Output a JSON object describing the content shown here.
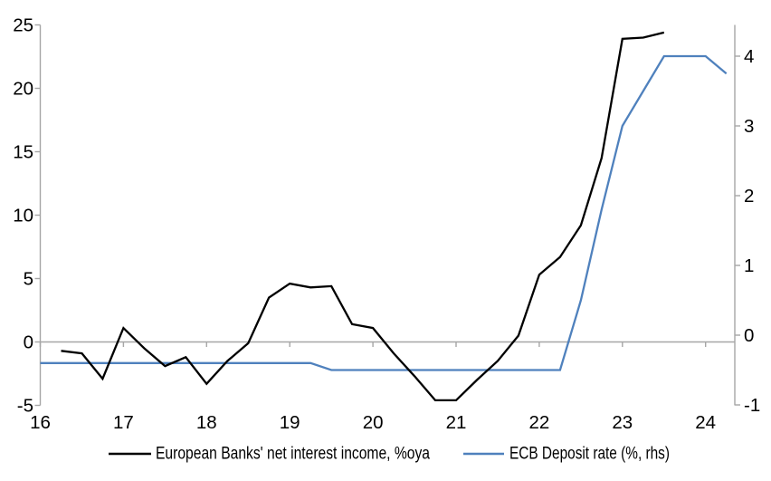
{
  "chart_data": {
    "type": "line",
    "title": "",
    "grid": "zero-line-only",
    "legend_position": "bottom",
    "background_color": "#ffffff",
    "axis_color": "#a6a6a6",
    "x_axis": {
      "label": "",
      "tick_labels": [
        "16",
        "17",
        "18",
        "19",
        "20",
        "21",
        "22",
        "23",
        "24"
      ],
      "tick_values": [
        16,
        17,
        18,
        19,
        20,
        21,
        22,
        23,
        24
      ],
      "min": 16,
      "max": 24.35
    },
    "left_axis": {
      "label": "",
      "tick_labels": [
        "25",
        "20",
        "15",
        "10",
        "5",
        "0",
        "-5"
      ],
      "tick_values": [
        25,
        20,
        15,
        10,
        5,
        0,
        -5
      ],
      "min": -5,
      "max": 25
    },
    "right_axis": {
      "label": "",
      "tick_labels": [
        "4",
        "3",
        "2",
        "1",
        "0",
        "-1"
      ],
      "tick_values": [
        4,
        3,
        2,
        1,
        0,
        -1
      ],
      "min": -1.0,
      "max": 4.45
    },
    "series": [
      {
        "name": "European Banks' net interest income, %oya",
        "axis": "left",
        "color": "#000000",
        "x": [
          16.25,
          16.5,
          16.75,
          17.0,
          17.25,
          17.5,
          17.75,
          18.0,
          18.25,
          18.5,
          18.75,
          19.0,
          19.25,
          19.5,
          19.75,
          20.0,
          20.25,
          20.5,
          20.75,
          21.0,
          21.25,
          21.5,
          21.75,
          22.0,
          22.25,
          22.5,
          22.75,
          23.0,
          23.25,
          23.5
        ],
        "values": [
          -0.7,
          -0.9,
          -2.9,
          1.1,
          -0.5,
          -1.9,
          -1.2,
          -3.3,
          -1.5,
          -0.1,
          3.5,
          4.6,
          4.3,
          4.4,
          1.4,
          1.1,
          -0.9,
          -2.7,
          -4.6,
          -4.6,
          -3.0,
          -1.5,
          0.5,
          5.3,
          6.7,
          9.2,
          14.5,
          23.9,
          24.0,
          24.4
        ]
      },
      {
        "name": "ECB Deposit rate (%, rhs)",
        "axis": "right",
        "color": "#4f81bd",
        "x": [
          16.0,
          16.25,
          16.5,
          16.75,
          17.0,
          17.25,
          17.5,
          17.75,
          18.0,
          18.25,
          18.5,
          18.75,
          19.0,
          19.25,
          19.5,
          19.75,
          20.0,
          20.25,
          20.5,
          20.75,
          21.0,
          21.25,
          21.5,
          21.75,
          22.0,
          22.25,
          22.5,
          22.75,
          23.0,
          23.25,
          23.5,
          23.75,
          24.0,
          24.25
        ],
        "values": [
          -0.4,
          -0.4,
          -0.4,
          -0.4,
          -0.4,
          -0.4,
          -0.4,
          -0.4,
          -0.4,
          -0.4,
          -0.4,
          -0.4,
          -0.4,
          -0.4,
          -0.5,
          -0.5,
          -0.5,
          -0.5,
          -0.5,
          -0.5,
          -0.5,
          -0.5,
          -0.5,
          -0.5,
          -0.5,
          -0.5,
          0.5,
          1.8,
          3.0,
          3.5,
          4.0,
          4.0,
          4.0,
          3.75
        ]
      }
    ]
  },
  "colors": {
    "background": "#ffffff",
    "axis": "#a6a6a6",
    "text": "#000000",
    "nii_line": "#000000",
    "deposit_line": "#4f81bd"
  }
}
